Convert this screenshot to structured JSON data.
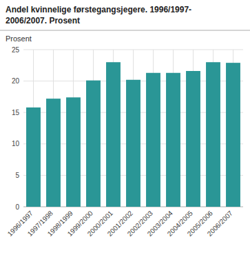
{
  "chart_data": {
    "type": "bar",
    "title": "Andel kvinnelige førstegangsjegere. 1996/1997-\n2006/2007. Prosent",
    "ylabel": "Prosent",
    "categories": [
      "1996/1997",
      "1997/1998",
      "1998/1999",
      "1999/2000",
      "2000/2001",
      "2001/2002",
      "2002/2003",
      "2003/2004",
      "2004/2005",
      "2005/2006",
      "2006/2007"
    ],
    "values": [
      15.8,
      17.2,
      17.4,
      20.1,
      23.0,
      20.2,
      21.3,
      21.3,
      21.6,
      23.0,
      22.9
    ],
    "color": "#2a9696",
    "ylim": [
      0,
      25
    ],
    "yticks": [
      0,
      5,
      10,
      15,
      20,
      25
    ],
    "grid": true
  }
}
